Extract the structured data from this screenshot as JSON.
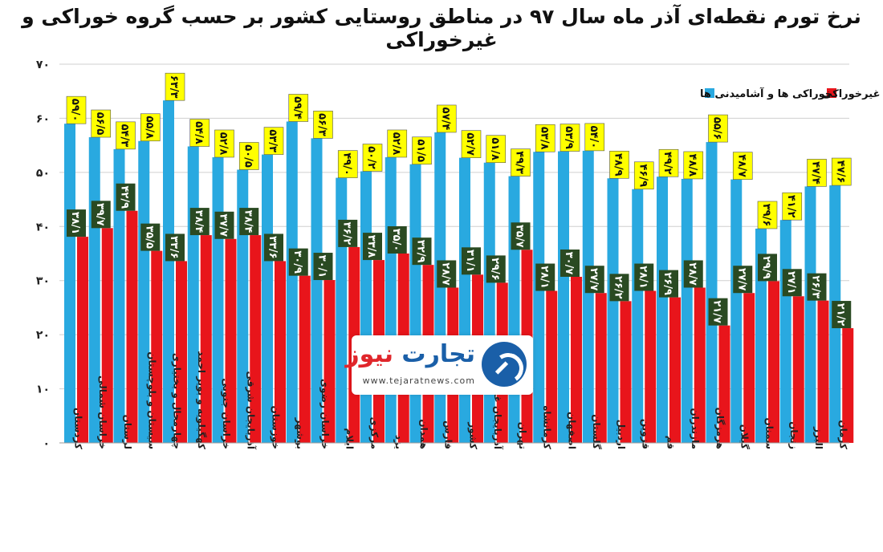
{
  "title": "نرخ تورم نقطه‌ای آذر ماه سال ۹۷ در مناطق روستایی کشور بر حسب گروه خوراکی و غیرخوراکی",
  "chart_data": {
    "type": "bar",
    "ylim": [
      0,
      70
    ],
    "yticks": [
      "۰",
      "۱۰",
      "۲۰",
      "۳۰",
      "۴۰",
      "۵۰",
      "۶۰",
      "۷۰"
    ],
    "grid": true,
    "legend_position": "top-right",
    "categories": [
      "کردستان",
      "خراسان شمالی",
      "لرستان",
      "سیستان و بلوچستان",
      "چهارمحال و بختیاری",
      "کهگیلویه و بویر احمد",
      "خراسان جنوبی",
      "آذربایجان شرقی",
      "خوزستان",
      "بوشهر",
      "خراسان رضوی",
      "ایلام",
      "مرکزی",
      "یزد",
      "همدان",
      "فارس",
      "کشور",
      "آذربایجان غربی",
      "تهران",
      "کرمانشاه",
      "اصفهان",
      "گلستان",
      "اردبیل",
      "قزوین",
      "قم",
      "مازندران",
      "هرمزگان",
      "گیلان",
      "سمنان",
      "زنجان",
      "البرز",
      "کرمان"
    ],
    "series": [
      {
        "name": "خوراکی ها و آشامیدنی ها",
        "color": "#29a9e0",
        "label_bg": "#ffff00",
        "label_color": "#111111",
        "values": [
          59.0,
          56.5,
          54.3,
          55.8,
          63.3,
          54.8,
          52.8,
          50.5,
          53.3,
          59.4,
          56.3,
          49.0,
          50.2,
          52.8,
          51.5,
          57.4,
          52.7,
          51.8,
          49.3,
          53.8,
          53.9,
          54.0,
          48.9,
          46.9,
          49.2,
          48.8,
          55.6,
          48.7,
          39.6,
          41.2,
          47.4,
          47.6
        ],
        "labels": [
          "۵۹/۰",
          "۵۶/۵",
          "۵۴/۳",
          "۵۵/۸",
          "۶۳/۳",
          "۵۴/۸",
          "۵۲/۸",
          "۵۰/۵",
          "۵۳/۳",
          "۵۹/۴",
          "۵۶/۳",
          "۴۹/۰",
          "۵۰/۲",
          "۵۲/۸",
          "۵۱/۵",
          "۵۷/۴",
          "۵۲/۷",
          "۵۱/۸",
          "۴۹/۳",
          "۵۳/۸",
          "۵۳/۹",
          "۵۴/۰",
          "۴۸/۹",
          "۴۶/۹",
          "۴۹/۲",
          "۴۸/۸",
          "۵۵/۶",
          "۴۸/۷",
          "۳۹/۶",
          "۴۱/۲",
          "۴۷/۴",
          "۴۷/۶"
        ]
      },
      {
        "name": "غیرخوراکی",
        "color": "#e8151b",
        "label_bg": "#2a4a22",
        "label_color": "#ffffff",
        "values": [
          38.1,
          39.7,
          42.9,
          35.5,
          33.6,
          38.4,
          37.7,
          38.4,
          33.6,
          30.9,
          30.1,
          36.2,
          33.8,
          35.0,
          32.9,
          28.7,
          31.1,
          29.6,
          35.7,
          28.1,
          30.7,
          27.7,
          26.2,
          28.1,
          26.9,
          28.7,
          21.7,
          27.7,
          29.9,
          27.1,
          26.3,
          21.2
        ],
        "labels": [
          "۳۸/۱",
          "۳۹/۷",
          "۴۲/۹",
          "۳۵/۵",
          "۳۳/۶",
          "۳۸/۴",
          "۳۷/۷",
          "۳۸/۴",
          "۳۳/۶",
          "۳۰/۹",
          "۳۰/۱",
          "۳۶/۲",
          "۳۳/۸",
          "۳۵/۰",
          "۳۲/۹",
          "۲۸/۷",
          "۳۱/۱",
          "۲۹/۶",
          "۳۵/۷",
          "۲۸/۱",
          "۳۰/۷",
          "۲۷/۷",
          "۲۶/۲",
          "۲۸/۱",
          "۲۶/۹",
          "۲۸/۷",
          "۲۱/۷",
          "۲۷/۷",
          "۲۹/۹",
          "۲۷/۱",
          "۲۶/۳",
          "۲۱/۲"
        ]
      }
    ]
  },
  "watermark": {
    "name_part1": "تجارت",
    "name_part2": "نیوز",
    "url": "www.tejaratnews.com",
    "icon": "tejarat-news-logo-icon"
  }
}
